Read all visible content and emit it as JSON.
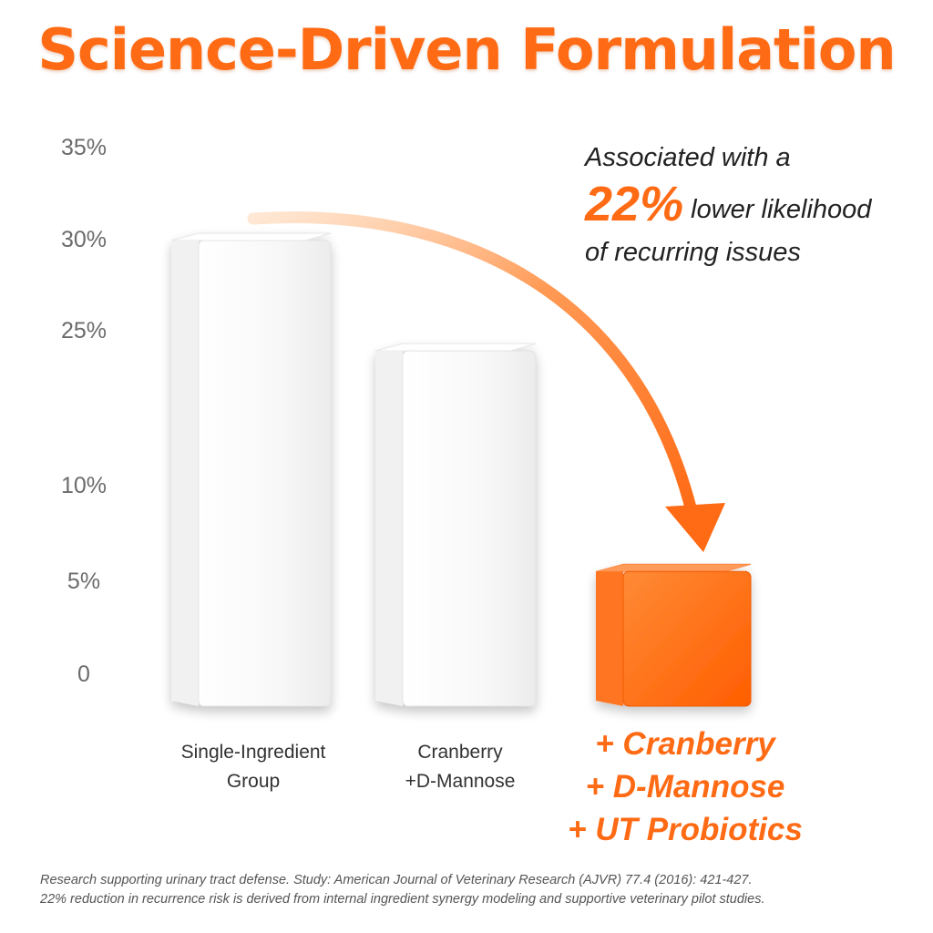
{
  "chart_data": {
    "type": "bar",
    "title": "Science-Driven Formulation",
    "y_ticks": [
      "35%",
      "30%",
      "25%",
      "10%",
      "5%",
      "0"
    ],
    "ylim": [
      0,
      35
    ],
    "categories": [
      [
        "Single-Ingredient",
        "Group"
      ],
      [
        "Cranberry",
        "+D-Mannose"
      ],
      [
        "+ Cranberry",
        "+ D-Mannose",
        "+ UT Probiotics"
      ]
    ],
    "values": [
      30,
      23,
      9
    ],
    "highlight_index": 2,
    "grid": false,
    "legend": "none"
  },
  "callout": {
    "line1": "Associated with a",
    "percent": "22%",
    "line2": "lower likelihood",
    "line3": "of recurring issues"
  },
  "footnote": {
    "line1": "Research supporting urinary tract defense. Study: American Journal of Veterinary Research (AJVR) 77.4 (2016): 421-427.",
    "line2": "22% reduction in recurrence risk is derived from internal ingredient synergy modeling and supportive veterinary pilot studies."
  },
  "colors": {
    "accent": "#ff6a14",
    "bar_white": "#f6f6f6",
    "tick_text": "#6b6b6b"
  }
}
